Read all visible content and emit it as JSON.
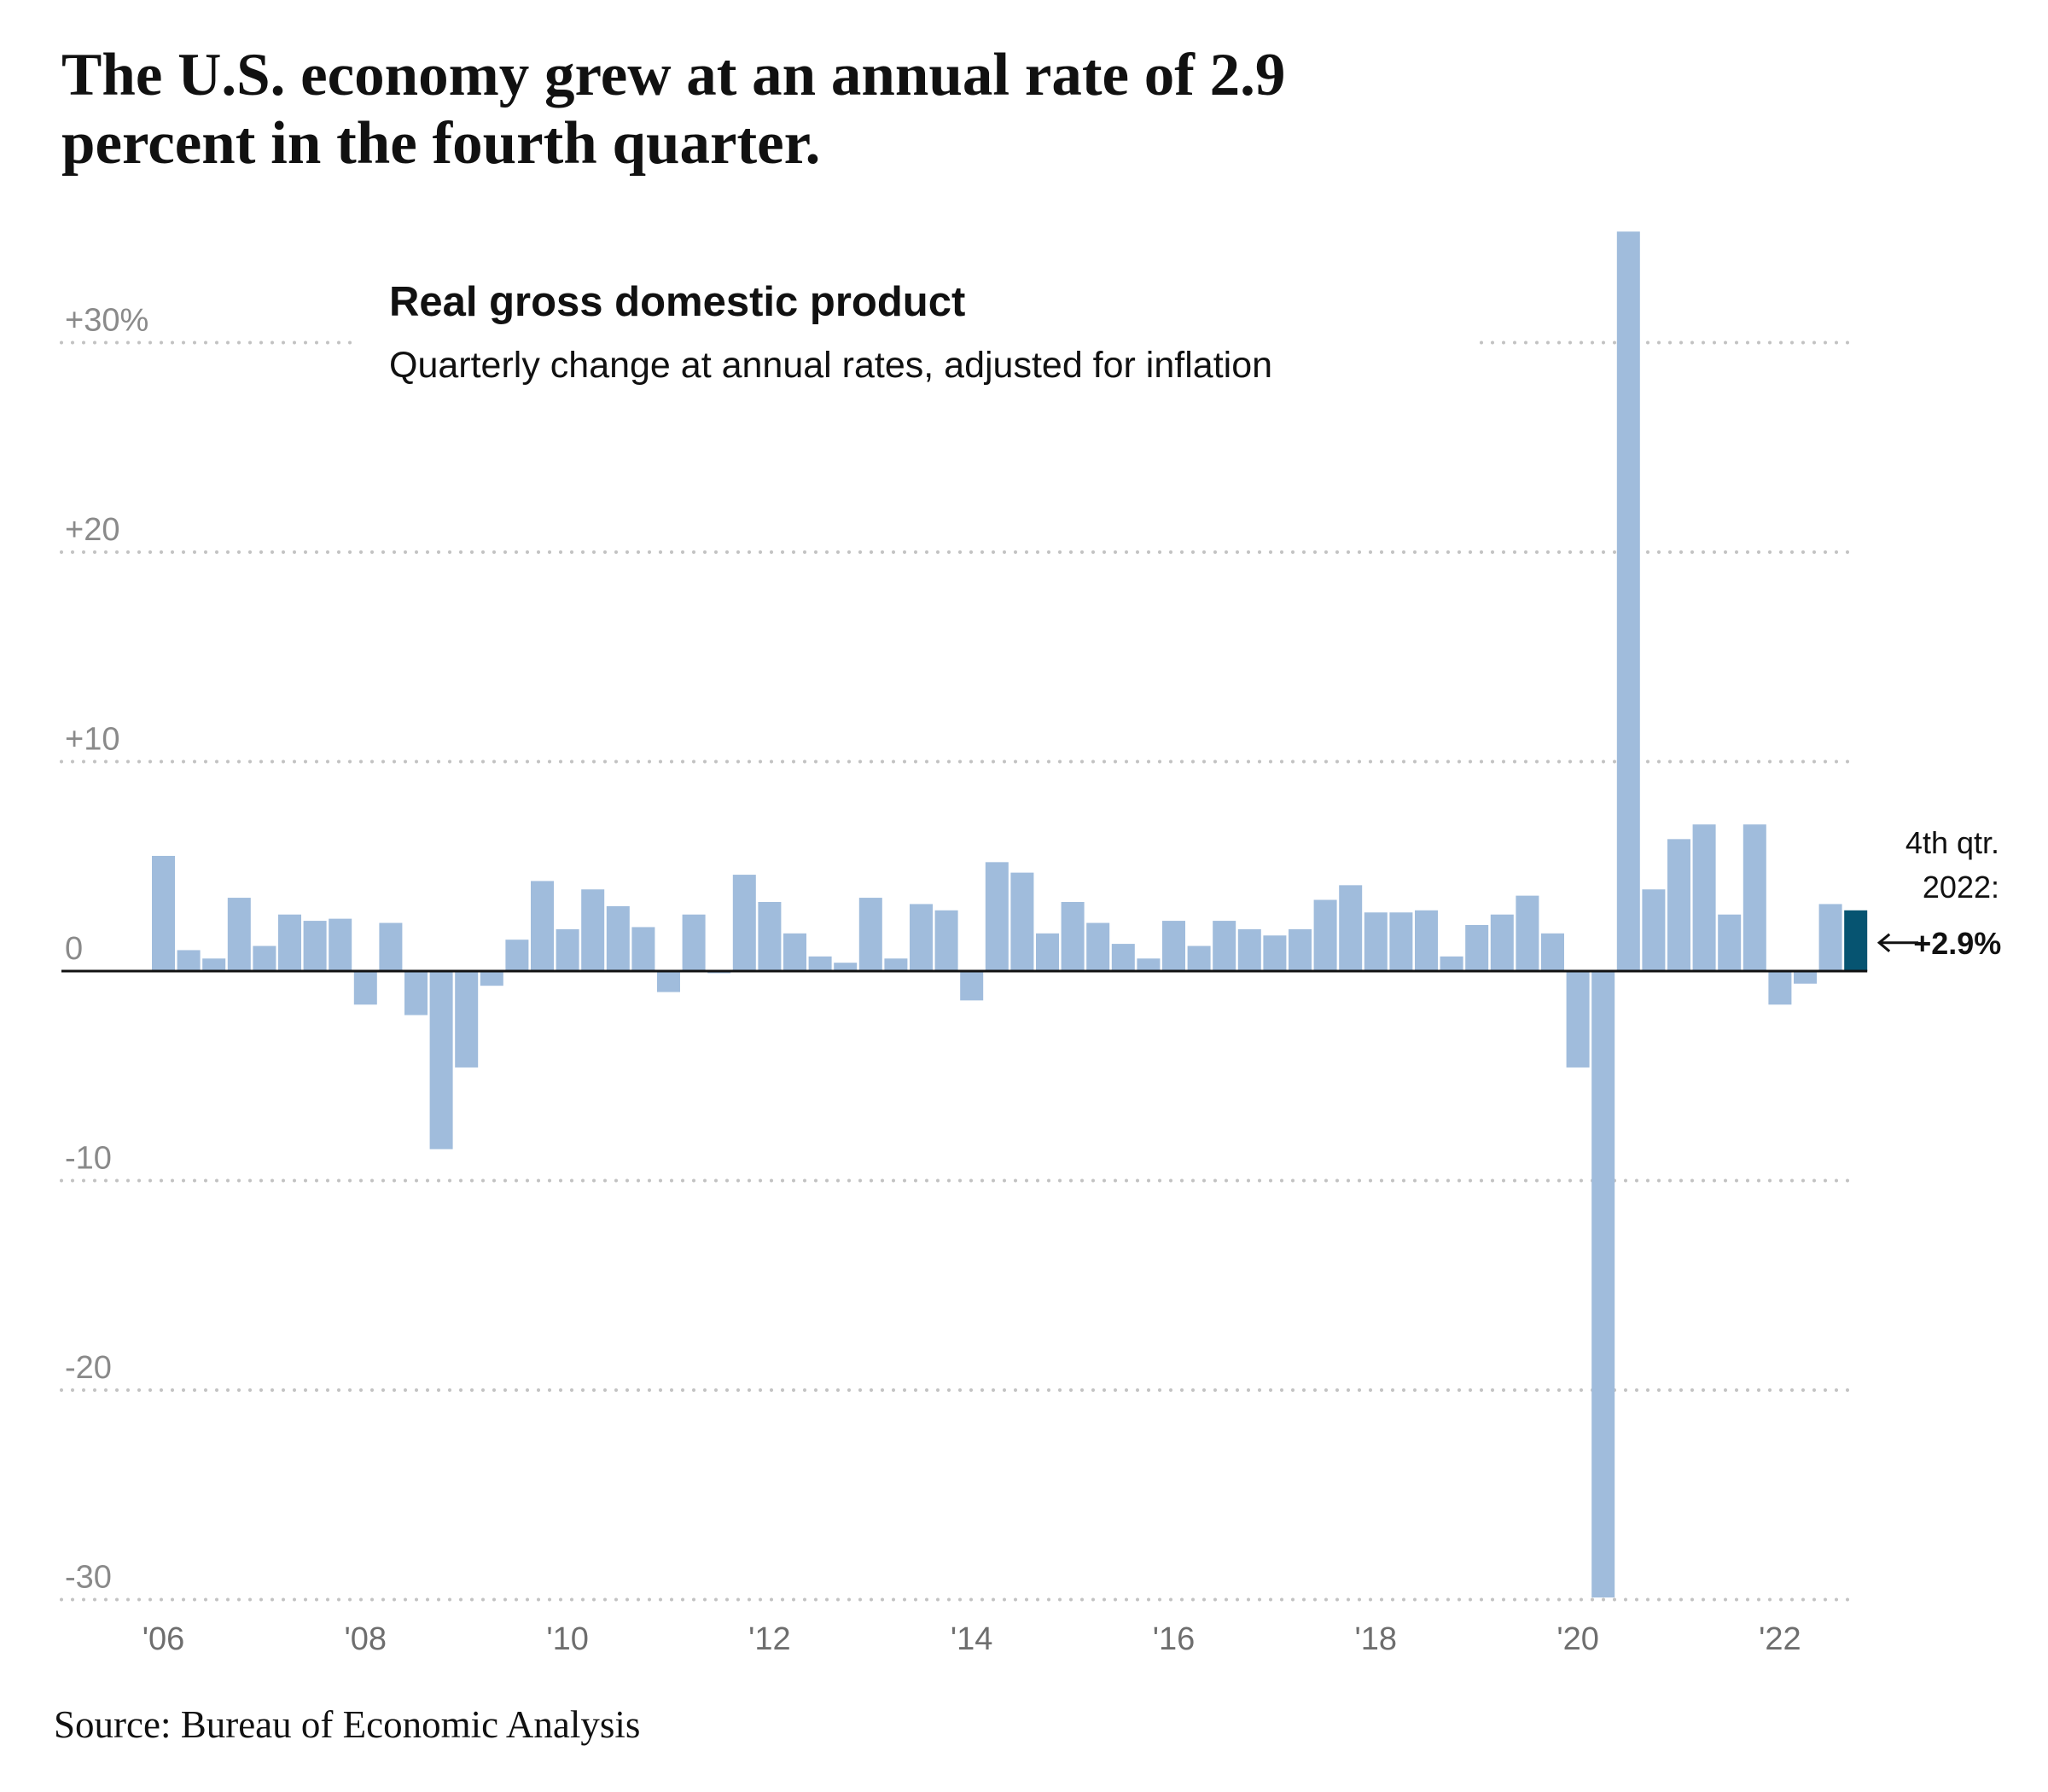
{
  "headline": "The U.S. economy grew at an annual rate of 2.9 percent in the fourth quarter.",
  "source": "Source: Bureau of Economic Analysis",
  "chart_data": {
    "type": "bar",
    "title": "Real gross domestic product",
    "subtitle": "Quarterly change at annual rates, adjusted for inflation",
    "ylim": [
      -30,
      35.4
    ],
    "grid": true,
    "y_ticks": [
      {
        "value": 30,
        "label": "+30%"
      },
      {
        "value": 20,
        "label": "+20"
      },
      {
        "value": 10,
        "label": "+10"
      },
      {
        "value": 0,
        "label": "0"
      },
      {
        "value": -10,
        "label": "-10"
      },
      {
        "value": -20,
        "label": "-20"
      },
      {
        "value": -30,
        "label": "-30"
      }
    ],
    "x_ticks": [
      "'06",
      "'08",
      "'10",
      "'12",
      "'14",
      "'16",
      "'18",
      "'20",
      "'22"
    ],
    "categories": [
      "2006 Q1",
      "2006 Q2",
      "2006 Q3",
      "2006 Q4",
      "2007 Q1",
      "2007 Q2",
      "2007 Q3",
      "2007 Q4",
      "2008 Q1",
      "2008 Q2",
      "2008 Q3",
      "2008 Q4",
      "2009 Q1",
      "2009 Q2",
      "2009 Q3",
      "2009 Q4",
      "2010 Q1",
      "2010 Q2",
      "2010 Q3",
      "2010 Q4",
      "2011 Q1",
      "2011 Q2",
      "2011 Q3",
      "2011 Q4",
      "2012 Q1",
      "2012 Q2",
      "2012 Q3",
      "2012 Q4",
      "2013 Q1",
      "2013 Q2",
      "2013 Q3",
      "2013 Q4",
      "2014 Q1",
      "2014 Q2",
      "2014 Q3",
      "2014 Q4",
      "2015 Q1",
      "2015 Q2",
      "2015 Q3",
      "2015 Q4",
      "2016 Q1",
      "2016 Q2",
      "2016 Q3",
      "2016 Q4",
      "2017 Q1",
      "2017 Q2",
      "2017 Q3",
      "2017 Q4",
      "2018 Q1",
      "2018 Q2",
      "2018 Q3",
      "2018 Q4",
      "2019 Q1",
      "2019 Q2",
      "2019 Q3",
      "2019 Q4",
      "2020 Q1",
      "2020 Q2",
      "2020 Q3",
      "2020 Q4",
      "2021 Q1",
      "2021 Q2",
      "2021 Q3",
      "2021 Q4",
      "2022 Q1",
      "2022 Q2",
      "2022 Q3",
      "2022 Q4"
    ],
    "values": [
      5.5,
      1.0,
      0.6,
      3.5,
      1.2,
      2.7,
      2.4,
      2.5,
      -1.6,
      2.3,
      -2.1,
      -8.5,
      -4.6,
      -0.7,
      1.5,
      4.3,
      2.0,
      3.9,
      3.1,
      2.1,
      -1.0,
      2.7,
      -0.1,
      4.6,
      3.3,
      1.8,
      0.7,
      0.4,
      3.5,
      0.6,
      3.2,
      2.9,
      -1.4,
      5.2,
      4.7,
      1.8,
      3.3,
      2.3,
      1.3,
      0.6,
      2.4,
      1.2,
      2.4,
      2.0,
      1.7,
      2.0,
      3.4,
      4.1,
      2.8,
      2.8,
      2.9,
      0.7,
      2.2,
      2.7,
      3.6,
      1.8,
      -4.6,
      -29.9,
      35.3,
      3.9,
      6.3,
      7.0,
      2.7,
      7.0,
      -1.6,
      -0.6,
      3.2,
      2.9
    ],
    "colors": {
      "bar": "#a0bcdc",
      "highlight": "#065471",
      "grid": "#c2c2c2",
      "zero_line": "#111111"
    },
    "annotation": {
      "line1": "4th qtr.",
      "line2": "2022:",
      "value": "+2.9%"
    }
  }
}
